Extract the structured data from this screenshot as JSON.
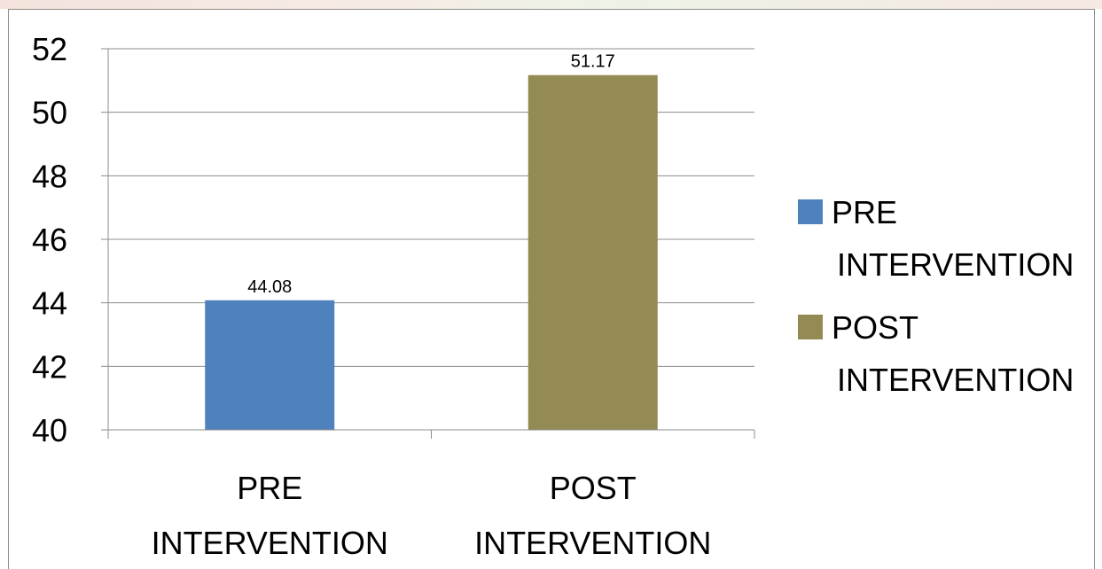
{
  "chart_data": {
    "type": "bar",
    "categories": [
      "PRE INTERVENTION",
      "POST INTERVENTION"
    ],
    "category_lines": [
      [
        "PRE",
        "INTERVENTION"
      ],
      [
        "POST",
        "INTERVENTION"
      ]
    ],
    "values": [
      44.08,
      51.17
    ],
    "data_labels": [
      "44.08",
      "51.17"
    ],
    "colors": [
      "#4f81bd",
      "#948a54"
    ],
    "ylim": [
      40,
      52
    ],
    "yticks": [
      40,
      42,
      44,
      46,
      48,
      50,
      52
    ],
    "ytick_labels": [
      "40",
      "42",
      "44",
      "46",
      "48",
      "50",
      "52"
    ],
    "grid": true,
    "legend": {
      "placement": "right",
      "entries": [
        {
          "lines": [
            "PRE",
            "INTERVENTION"
          ],
          "color": "#4f81bd"
        },
        {
          "lines": [
            "POST",
            "INTERVENTION"
          ],
          "color": "#948a54"
        }
      ]
    }
  }
}
